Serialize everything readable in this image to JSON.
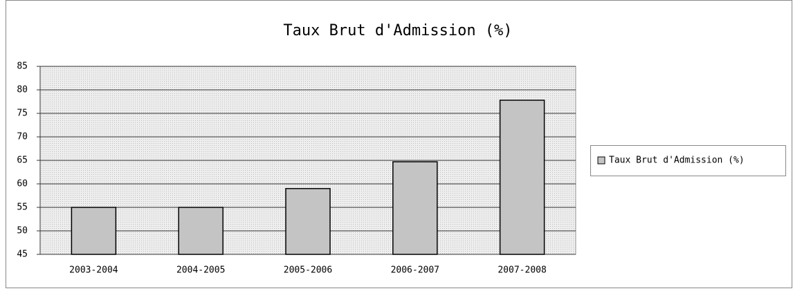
{
  "chart_data": {
    "type": "bar",
    "title": "Taux Brut d'Admission (%)",
    "categories": [
      "2003-2004",
      "2004-2005",
      "2005-2006",
      "2006-2007",
      "2007-2008"
    ],
    "series": [
      {
        "name": "Taux Brut d'Admission (%)",
        "color": "#c4c4c4",
        "values": [
          55,
          55,
          59,
          64.7,
          77.8
        ]
      }
    ],
    "ylim": [
      45,
      85
    ],
    "yticks": [
      45,
      50,
      55,
      60,
      65,
      70,
      75,
      80,
      85
    ],
    "grid": true,
    "legend": "right"
  }
}
